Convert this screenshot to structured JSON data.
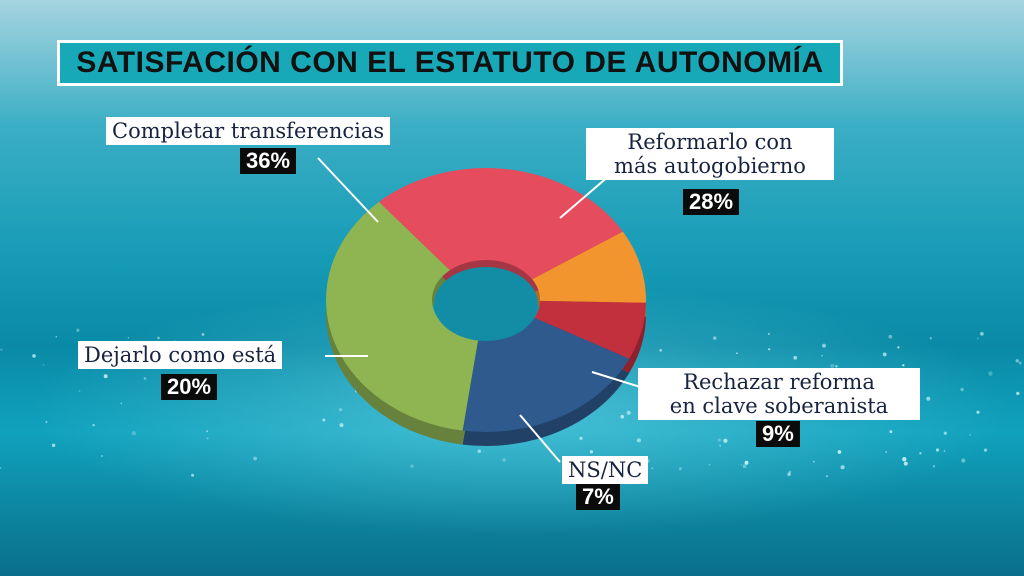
{
  "title": "SATISFACIÓN CON EL ESTATUTO DE AUTONOMÍA",
  "chart_data": {
    "type": "pie",
    "title": "SATISFACIÓN CON EL ESTATUTO DE AUTONOMÍA",
    "slices": [
      {
        "label": "Reformarlo con más autogobierno",
        "label_lines": [
          "Reformarlo con",
          "más autogobierno"
        ],
        "value": 28,
        "value_label": "28%",
        "color": "#e54d5e"
      },
      {
        "label": "Rechazar reforma en clave soberanista",
        "label_lines": [
          "Rechazar reforma",
          "en clave soberanista"
        ],
        "value": 9,
        "value_label": "9%",
        "color": "#f2952e"
      },
      {
        "label": "NS/NC",
        "label_lines": [
          "NS/NC"
        ],
        "value": 7,
        "value_label": "7%",
        "color": "#c22f3d"
      },
      {
        "label": "Dejarlo como está",
        "label_lines": [
          "Dejarlo como está"
        ],
        "value": 20,
        "value_label": "20%",
        "color": "#2e5a8e"
      },
      {
        "label": "Completar transferencias",
        "label_lines": [
          "Completar transferencias"
        ],
        "value": 36,
        "value_label": "36%",
        "color": "#8fb553"
      }
    ]
  }
}
